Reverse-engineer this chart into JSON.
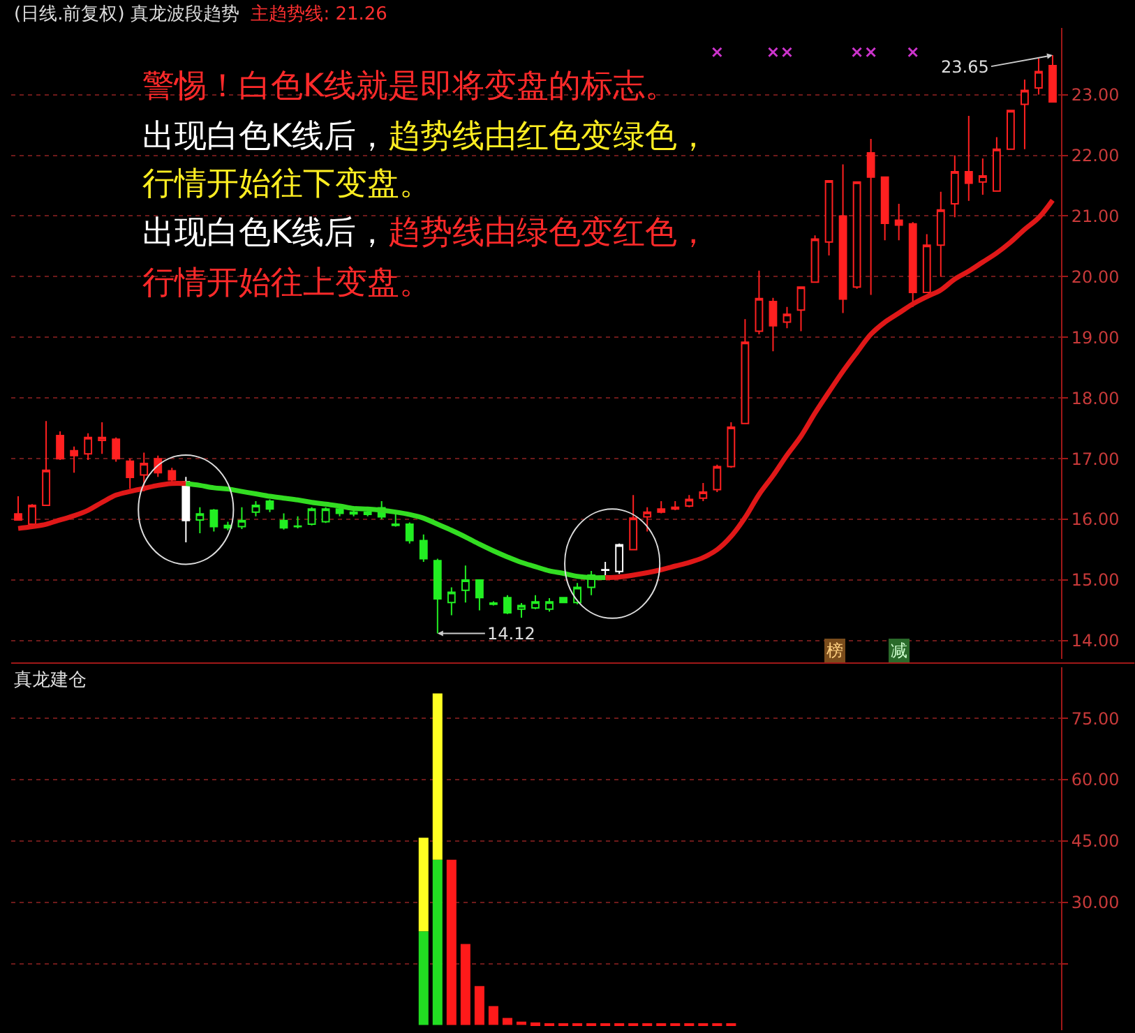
{
  "chart_data": [
    {
      "type": "candlestick",
      "title": "(日线.前复权) 真龙波段趋势",
      "subtitle": "主趋势线: 21.26",
      "categories": [
        null,
        null,
        null,
        null,
        null,
        null,
        null,
        null,
        null,
        null,
        null,
        null,
        null,
        null,
        null,
        null,
        null,
        null,
        null,
        null,
        null,
        null,
        null,
        null,
        null,
        null,
        null,
        null,
        null,
        null,
        null,
        null,
        null,
        null,
        null,
        null,
        null,
        null,
        null,
        null,
        null,
        null,
        null,
        null,
        null,
        null,
        null,
        null,
        null,
        null,
        null,
        null,
        null,
        null,
        null,
        null,
        null,
        null,
        null,
        null,
        null,
        null,
        null,
        null,
        null,
        null,
        null,
        null,
        null,
        null,
        null,
        null,
        null,
        null,
        null
      ],
      "ylim": [
        13.7,
        24.1
      ],
      "yticks": [
        {
          "value": 14,
          "label": "14.00"
        },
        {
          "value": 15,
          "label": "15.00"
        },
        {
          "value": 16,
          "label": "16.00"
        },
        {
          "value": 17,
          "label": "17.00"
        },
        {
          "value": 18,
          "label": "18.00"
        },
        {
          "value": 19,
          "label": "19.00"
        },
        {
          "value": 20,
          "label": "20.00"
        },
        {
          "value": 21,
          "label": "21.00"
        },
        {
          "value": 22,
          "label": "22.00"
        },
        {
          "value": 23,
          "label": "23.00"
        }
      ],
      "grid": "y",
      "tick_labels": "y",
      "annotations": [
        "警惕！白色K线就是即将变盘的标志。",
        "出现白色K线后，",
        "趋势线由红色变绿色，",
        "行情开始往下变盘。",
        "出现白色K线后，",
        "趋势线由绿色变红色，",
        "行情开始往上变盘。",
        "榜",
        "减",
        "23.65",
        "14.12"
      ],
      "series": [
        {
          "type": "line",
          "color": "#e01818",
          "values": [
            15.85,
            15.88,
            15.92,
            15.99,
            16.06,
            16.15,
            16.28,
            16.4,
            16.46,
            16.51,
            16.56,
            16.59,
            16.59,
            null,
            null,
            null,
            null,
            null,
            null,
            null,
            null,
            null,
            null,
            null,
            null,
            null,
            null,
            null,
            null,
            null,
            null,
            null,
            null,
            null,
            null,
            null,
            null,
            null,
            null,
            null,
            null,
            null,
            15.04,
            15.05,
            15.08,
            15.12,
            15.17,
            15.23,
            15.29,
            15.37,
            15.5,
            15.72,
            16.03,
            16.41,
            16.72,
            17.06,
            17.37,
            17.75,
            18.1,
            18.44,
            18.75,
            19.05,
            19.25,
            19.4,
            19.55,
            19.67,
            19.78,
            19.96,
            20.09,
            20.24,
            20.39,
            20.57,
            20.78,
            20.97,
            21.26
          ]
        },
        {
          "type": "line",
          "color": "#33dd22",
          "values": [
            null,
            null,
            null,
            null,
            null,
            null,
            null,
            null,
            null,
            null,
            null,
            null,
            16.59,
            16.56,
            16.52,
            16.5,
            16.46,
            16.42,
            16.38,
            16.35,
            16.32,
            16.28,
            16.25,
            16.22,
            16.18,
            16.17,
            16.15,
            16.12,
            16.08,
            16.02,
            15.92,
            15.82,
            15.71,
            15.59,
            15.48,
            15.38,
            15.29,
            15.22,
            15.15,
            15.11,
            15.06,
            15.04,
            15.04,
            null,
            null,
            null,
            null,
            null,
            null,
            null,
            null,
            null,
            null,
            null,
            null,
            null,
            null,
            null,
            null,
            null,
            null,
            null,
            null,
            null,
            null,
            null,
            null,
            null,
            null,
            null,
            null,
            null,
            null,
            null,
            null
          ]
        },
        {
          "type": "candlestick",
          "color": "#ff2020",
          "ohlc": [
            [
              16.09,
              16.38,
              15.98,
              15.99
            ],
            [
              15.92,
              16.25,
              15.85,
              16.23
            ],
            [
              16.23,
              17.62,
              16.23,
              16.81
            ],
            [
              17.38,
              17.45,
              16.98,
              17.0
            ],
            [
              17.13,
              17.2,
              16.77,
              17.05
            ],
            [
              17.08,
              17.42,
              16.98,
              17.35
            ],
            [
              17.3,
              17.6,
              17.08,
              17.35
            ],
            [
              17.32,
              17.35,
              16.95,
              17.0
            ],
            [
              16.96,
              17.0,
              16.5,
              16.69
            ],
            [
              16.73,
              17.1,
              16.46,
              16.92
            ],
            [
              17.0,
              17.05,
              16.7,
              16.77
            ],
            [
              16.8,
              16.85,
              16.6,
              16.65
            ],
            null,
            null,
            null,
            null,
            null,
            null,
            null,
            null,
            null,
            null,
            null,
            null,
            null,
            null,
            null,
            null,
            null,
            null,
            null,
            null,
            null,
            null,
            null,
            null,
            null,
            null,
            null,
            null,
            null,
            null,
            null,
            null,
            [
              15.5,
              16.4,
              15.5,
              16.02
            ],
            [
              16.04,
              16.2,
              15.8,
              16.12
            ],
            [
              16.17,
              16.3,
              16.1,
              16.12
            ],
            [
              16.17,
              16.3,
              16.15,
              16.2
            ],
            [
              16.22,
              16.4,
              16.2,
              16.33
            ],
            [
              16.35,
              16.6,
              16.3,
              16.45
            ],
            [
              16.49,
              16.9,
              16.45,
              16.87
            ],
            [
              16.87,
              17.6,
              16.85,
              17.52
            ],
            [
              17.58,
              19.3,
              17.58,
              18.92
            ],
            [
              19.1,
              20.1,
              19.05,
              19.64
            ],
            [
              19.59,
              19.65,
              18.77,
              19.19
            ],
            [
              19.25,
              19.5,
              19.15,
              19.38
            ],
            [
              19.45,
              19.83,
              19.1,
              19.83
            ],
            [
              19.91,
              20.68,
              19.9,
              20.62
            ],
            [
              20.57,
              21.58,
              20.35,
              21.58
            ],
            [
              21.0,
              21.85,
              19.4,
              19.63
            ],
            [
              19.83,
              21.56,
              19.8,
              21.56
            ],
            [
              22.04,
              22.27,
              19.7,
              21.64
            ],
            [
              21.64,
              21.64,
              20.6,
              20.88
            ],
            [
              20.93,
              21.2,
              20.6,
              20.85
            ],
            [
              20.87,
              20.9,
              19.5,
              19.74
            ],
            [
              19.74,
              20.7,
              19.74,
              20.52
            ],
            [
              20.52,
              21.4,
              20.0,
              21.1
            ],
            [
              21.2,
              22.0,
              20.98,
              21.73
            ],
            [
              21.73,
              22.65,
              21.25,
              21.54
            ],
            [
              21.56,
              21.95,
              21.35,
              21.66
            ],
            [
              21.41,
              22.3,
              21.41,
              22.1
            ],
            [
              22.1,
              22.74,
              22.1,
              22.74
            ],
            [
              22.84,
              23.25,
              22.1,
              23.07
            ],
            [
              23.11,
              23.6,
              23.0,
              23.38
            ],
            [
              23.48,
              23.65,
              22.88,
              22.88
            ]
          ]
        },
        {
          "type": "candlestick",
          "color": "#22ee22",
          "ohlc": [
            null,
            null,
            null,
            null,
            null,
            null,
            null,
            null,
            null,
            null,
            null,
            null,
            null,
            [
              15.99,
              16.2,
              15.77,
              16.09
            ],
            [
              16.15,
              16.17,
              15.8,
              15.88
            ],
            [
              15.9,
              15.96,
              15.82,
              15.86
            ],
            [
              15.88,
              16.2,
              15.84,
              15.98
            ],
            [
              16.12,
              16.3,
              16.05,
              16.23
            ],
            [
              16.3,
              16.33,
              16.12,
              16.17
            ],
            [
              15.98,
              16.1,
              15.83,
              15.86
            ],
            [
              15.88,
              16.05,
              15.85,
              15.89
            ],
            [
              15.92,
              16.2,
              15.9,
              16.17
            ],
            [
              15.96,
              16.2,
              15.94,
              16.17
            ],
            [
              16.17,
              16.2,
              16.05,
              16.1
            ],
            [
              16.12,
              16.15,
              16.05,
              16.09
            ],
            [
              16.12,
              16.15,
              16.05,
              16.08
            ],
            [
              16.19,
              16.3,
              16.0,
              16.04
            ],
            [
              15.92,
              16.1,
              15.88,
              15.9
            ],
            [
              15.92,
              15.95,
              15.6,
              15.65
            ],
            [
              15.65,
              15.75,
              15.3,
              15.35
            ],
            [
              15.32,
              15.35,
              14.12,
              14.69
            ],
            [
              14.63,
              14.88,
              14.42,
              14.8
            ],
            [
              14.83,
              15.24,
              14.63,
              15.0
            ],
            [
              15.0,
              15.0,
              14.5,
              14.71
            ],
            [
              14.62,
              14.65,
              14.58,
              14.6
            ],
            [
              14.71,
              14.75,
              14.44,
              14.46
            ],
            [
              14.52,
              14.62,
              14.38,
              14.58
            ],
            [
              14.54,
              14.75,
              14.52,
              14.64
            ],
            [
              14.52,
              14.7,
              14.48,
              14.64
            ],
            [
              14.71,
              14.72,
              14.62,
              14.63
            ],
            [
              14.63,
              14.95,
              14.6,
              14.88
            ],
            [
              14.88,
              15.15,
              14.75,
              15.08
            ],
            null,
            null,
            null,
            null,
            null,
            null,
            null,
            null,
            null,
            null,
            null,
            null,
            null,
            null,
            null,
            null,
            null,
            null,
            null,
            null,
            null,
            null,
            null,
            null,
            null,
            null,
            null,
            null,
            null,
            null,
            null,
            null,
            null
          ]
        },
        {
          "type": "candlestick",
          "color": "#ffffff",
          "ohlc": [
            null,
            null,
            null,
            null,
            null,
            null,
            null,
            null,
            null,
            null,
            null,
            null,
            [
              16.62,
              16.7,
              15.62,
              15.98
            ],
            null,
            null,
            null,
            null,
            null,
            null,
            null,
            null,
            null,
            null,
            null,
            null,
            null,
            null,
            null,
            null,
            null,
            null,
            null,
            null,
            null,
            null,
            null,
            null,
            null,
            null,
            null,
            null,
            null,
            [
              15.16,
              15.3,
              15.08,
              15.17
            ],
            [
              15.14,
              15.6,
              15.1,
              15.58
            ],
            null,
            null,
            null,
            null,
            null,
            null,
            null,
            null,
            null,
            null,
            null,
            null,
            null,
            null,
            null,
            null,
            null,
            null,
            null,
            null,
            null,
            null,
            null,
            null,
            null,
            null,
            null,
            null,
            null,
            null,
            null
          ]
        },
        {
          "type": "scatter",
          "color": "#cc33cc",
          "marker": "cross",
          "values": [
            null,
            null,
            null,
            null,
            null,
            null,
            null,
            null,
            null,
            null,
            null,
            null,
            null,
            null,
            null,
            null,
            null,
            null,
            null,
            null,
            null,
            null,
            null,
            null,
            null,
            null,
            null,
            null,
            null,
            null,
            null,
            null,
            null,
            null,
            null,
            null,
            null,
            null,
            null,
            null,
            null,
            null,
            null,
            null,
            null,
            null,
            null,
            null,
            null,
            null,
            23.7,
            null,
            null,
            null,
            23.7,
            23.7,
            null,
            null,
            null,
            null,
            23.7,
            23.7,
            null,
            null,
            23.7,
            null,
            null,
            null,
            null,
            null,
            null,
            null,
            null,
            null,
            null
          ]
        }
      ]
    },
    {
      "type": "bar",
      "title": "真龙建仓",
      "stacked": true,
      "categories": [
        null,
        null,
        null,
        null,
        null,
        null,
        null,
        null,
        null,
        null,
        null,
        null,
        null,
        null,
        null,
        null,
        null,
        null,
        null,
        null,
        null,
        null,
        null,
        null,
        null,
        null,
        null,
        null,
        null,
        null,
        null,
        null,
        null,
        null,
        null,
        null,
        null,
        null,
        null,
        null,
        null,
        null,
        null,
        null,
        null,
        null,
        null,
        null,
        null,
        null,
        null,
        null,
        null,
        null,
        null,
        null,
        null,
        null,
        null,
        null,
        null,
        null,
        null,
        null,
        null,
        null,
        null,
        null,
        null,
        null,
        null,
        null,
        null,
        null,
        null
      ],
      "ylim": [
        -1.3,
        87.5
      ],
      "yticks": [
        {
          "value": 15,
          "label": null
        },
        {
          "value": 30,
          "label": "30.00"
        },
        {
          "value": 45,
          "label": "45.00"
        },
        {
          "value": 60,
          "label": "60.00"
        },
        {
          "value": 75,
          "label": "75.00"
        }
      ],
      "grid": "y",
      "tick_labels": "y",
      "series": [
        {
          "color": "#22dd22",
          "values": [
            null,
            null,
            null,
            null,
            null,
            null,
            null,
            null,
            null,
            null,
            null,
            null,
            null,
            null,
            null,
            null,
            null,
            null,
            null,
            null,
            null,
            null,
            null,
            null,
            null,
            null,
            null,
            null,
            null,
            22.9,
            40.4,
            null,
            null,
            null,
            null,
            null,
            null,
            null,
            null,
            null,
            null,
            null,
            null,
            null,
            null,
            null,
            null,
            null,
            null,
            null,
            null,
            null,
            null,
            null,
            null,
            null,
            null,
            null,
            null,
            null,
            null,
            null,
            null,
            null,
            null,
            null,
            null,
            null,
            null,
            null,
            null,
            null,
            null,
            null,
            null
          ]
        },
        {
          "color": "#ffff22",
          "values": [
            null,
            null,
            null,
            null,
            null,
            null,
            null,
            null,
            null,
            null,
            null,
            null,
            null,
            null,
            null,
            null,
            null,
            null,
            null,
            null,
            null,
            null,
            null,
            null,
            null,
            null,
            null,
            null,
            null,
            22.9,
            40.7,
            null,
            null,
            null,
            null,
            null,
            null,
            null,
            null,
            null,
            null,
            null,
            null,
            null,
            null,
            null,
            null,
            null,
            null,
            null,
            null,
            null,
            null,
            null,
            null,
            null,
            null,
            null,
            null,
            null,
            null,
            null,
            null,
            null,
            null,
            null,
            null,
            null,
            null,
            null,
            null,
            null,
            null,
            null,
            null
          ]
        },
        {
          "color": "#ff1a1a",
          "values": [
            null,
            null,
            null,
            null,
            null,
            null,
            null,
            null,
            null,
            null,
            null,
            null,
            null,
            null,
            null,
            null,
            null,
            null,
            null,
            null,
            null,
            null,
            null,
            null,
            null,
            null,
            null,
            null,
            null,
            null,
            null,
            40.4,
            19.8,
            9.5,
            4.6,
            1.7,
            0.8,
            0.6,
            0.4,
            0.4,
            0.4,
            0.4,
            0.4,
            0.2,
            0.2,
            0.2,
            0.2,
            0.2,
            0.2,
            0.2,
            0.2,
            0.2,
            null,
            null,
            null,
            null,
            null,
            null,
            null,
            null,
            null,
            null,
            null,
            null,
            null,
            null,
            null,
            null,
            null,
            null,
            null,
            null,
            null,
            null,
            null
          ]
        }
      ]
    }
  ]
}
